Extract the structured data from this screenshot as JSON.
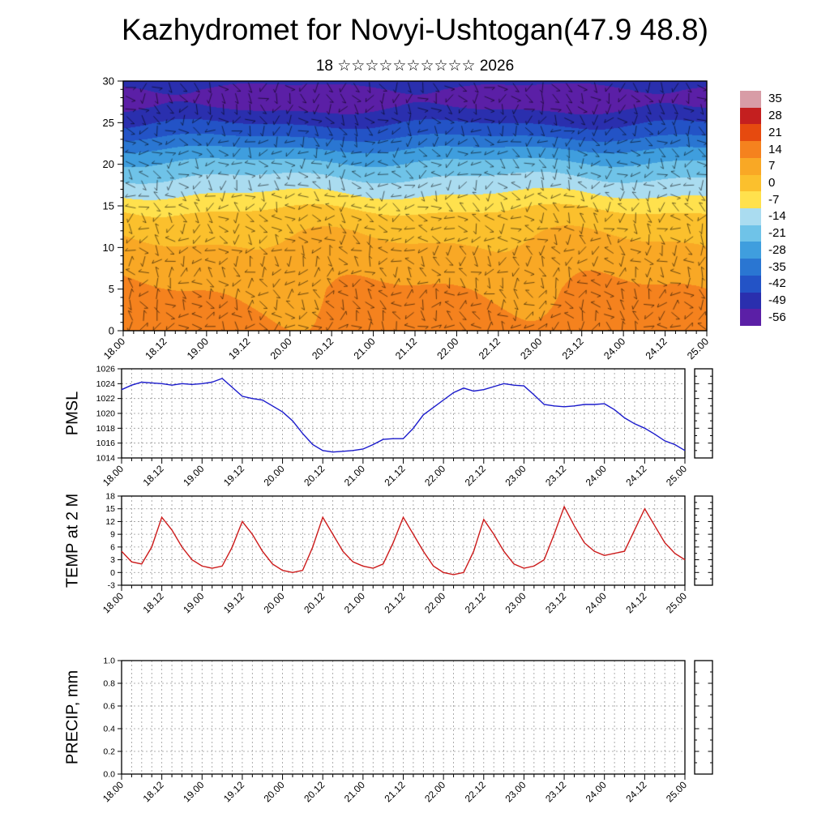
{
  "title": "Kazhydromet for Novyi-Ushtogan(47.9 48.8)",
  "subtitle": "18 ☆☆☆☆☆☆☆☆☆☆ 2026",
  "time_axis": {
    "start": 18.0,
    "end": 25.0,
    "minor_step_days": 0.125,
    "major_labels": [
      "18.00",
      "18.12",
      "19.00",
      "19.12",
      "20.00",
      "20.12",
      "21.00",
      "21.12",
      "22.00",
      "22.12",
      "23.00",
      "23.12",
      "24.00",
      "24.12",
      "25.00"
    ]
  },
  "chart_data": [
    {
      "type": "heatmap",
      "name": "time-height cross-section",
      "description": "Shaded temperature (deg C) vs time and model level with wind-barb overlay",
      "ylim": [
        0,
        30
      ],
      "yticks": [
        0,
        5,
        10,
        15,
        20,
        25,
        30
      ],
      "x_ticklabels": [
        "18.00",
        "18.12",
        "19.00",
        "19.12",
        "20.00",
        "20.12",
        "21.00",
        "21.12",
        "22.00",
        "22.12",
        "23.00",
        "23.12",
        "24.00",
        "24.12",
        "25.00"
      ],
      "colorbar_labels": [
        35,
        28,
        21,
        14,
        7,
        0,
        -7,
        -14,
        -21,
        -28,
        -35,
        -42,
        -49,
        -56
      ],
      "colorbar_colors": [
        "#d89ca6",
        "#c41f1f",
        "#e64a0f",
        "#f5821e",
        "#f9a825",
        "#fbc02d",
        "#ffe14d",
        "#aadcf0",
        "#6fc3e8",
        "#3f9ede",
        "#2a76d2",
        "#2353c6",
        "#2a2fae",
        "#5b1fa6"
      ],
      "level_profile": {
        "levels": [
          0,
          2,
          5,
          8,
          10,
          12,
          13,
          14,
          15,
          16,
          17,
          18,
          19,
          20,
          21,
          22,
          23,
          24,
          25,
          26,
          27,
          28,
          29,
          30
        ],
        "values": [
          13,
          12,
          10,
          7,
          5,
          2,
          0,
          -2,
          -5,
          -9,
          -12,
          -16,
          -19,
          -23,
          -27,
          -32,
          -37,
          -42,
          -46,
          -50,
          -54,
          -56,
          -54,
          -50
        ]
      },
      "wind_overlay": "wind barbs (individual directions not legible at this scale)"
    },
    {
      "type": "line",
      "title": "PMSL",
      "color": "#1a1acc",
      "ylim": [
        1014,
        1026
      ],
      "ytick_step": 2,
      "x_start": 18.0,
      "x_step_days": 0.125,
      "values": [
        1023.2,
        1023.8,
        1024.2,
        1024.1,
        1024.0,
        1023.8,
        1024.0,
        1023.9,
        1024.0,
        1024.2,
        1024.7,
        1023.5,
        1022.3,
        1022.0,
        1021.8,
        1021.0,
        1020.2,
        1019.0,
        1017.3,
        1015.8,
        1015.0,
        1014.8,
        1014.9,
        1015.0,
        1015.2,
        1015.8,
        1016.5,
        1016.6,
        1016.6,
        1018.0,
        1019.8,
        1020.8,
        1021.8,
        1022.8,
        1023.4,
        1023.0,
        1023.2,
        1023.6,
        1024.0,
        1023.8,
        1023.7,
        1022.5,
        1021.2,
        1021.0,
        1020.9,
        1021.0,
        1021.2,
        1021.2,
        1021.3,
        1020.5,
        1019.4,
        1018.6,
        1018.0,
        1017.2,
        1016.3,
        1015.8,
        1015.0
      ]
    },
    {
      "type": "line",
      "title": "TEMP at 2 M",
      "color": "#cc1a1a",
      "ylim": [
        -3,
        18
      ],
      "ytick_step": 3,
      "x_start": 18.0,
      "x_step_days": 0.125,
      "values": [
        5,
        2.5,
        2,
        6,
        13,
        10,
        6,
        3,
        1.5,
        1,
        1.5,
        6,
        12,
        9,
        5,
        2,
        0.5,
        0,
        0.5,
        6,
        13,
        9,
        5,
        2.5,
        1.5,
        1,
        2,
        7,
        13,
        9,
        5,
        1.5,
        0,
        -0.5,
        0,
        5,
        12.5,
        9,
        5,
        2,
        1,
        1.5,
        3,
        9,
        15.5,
        11,
        7,
        5,
        4,
        4.5,
        5,
        10,
        15,
        11,
        7,
        4.5,
        3
      ]
    },
    {
      "type": "line",
      "title": "PRECIP, mm",
      "color": "#1a1acc",
      "ylim": [
        0,
        1
      ],
      "ytick_step": 0.2,
      "x_start": 18.0,
      "x_step_days": 0.125,
      "values": [
        0,
        0,
        0,
        0,
        0,
        0,
        0,
        0,
        0,
        0,
        0,
        0,
        0,
        0,
        0,
        0,
        0,
        0,
        0,
        0,
        0,
        0,
        0,
        0,
        0,
        0,
        0,
        0,
        0,
        0,
        0,
        0,
        0,
        0,
        0,
        0,
        0,
        0,
        0,
        0,
        0,
        0,
        0,
        0,
        0,
        0,
        0,
        0,
        0,
        0,
        0,
        0,
        0,
        0,
        0,
        0,
        0
      ]
    }
  ]
}
